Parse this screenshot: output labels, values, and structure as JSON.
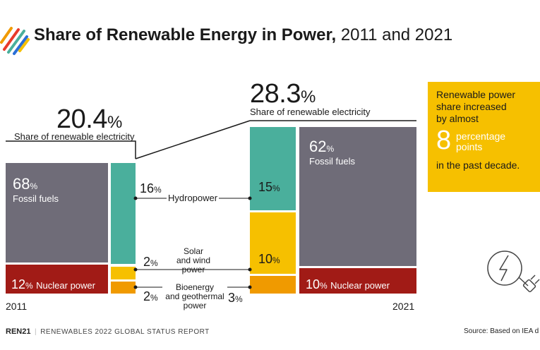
{
  "header": {
    "title_bold": "Share of Renewable Energy in Power,",
    "title_light": "2011 and 2021"
  },
  "colors": {
    "fossil": "#6f6c78",
    "nuclear": "#a11b16",
    "hydro": "#4aaf9c",
    "solar_wind": "#f6c000",
    "bio": "#f09a00",
    "box": "#f6c000"
  },
  "chart_data": {
    "type": "bar",
    "categories": [
      "2011",
      "2021"
    ],
    "series": [
      {
        "name": "Fossil fuels",
        "values": [
          68,
          62
        ]
      },
      {
        "name": "Nuclear power",
        "values": [
          12,
          10
        ]
      },
      {
        "name": "Hydropower",
        "values": [
          16,
          15
        ]
      },
      {
        "name": "Solar and wind power",
        "values": [
          2,
          10
        ]
      },
      {
        "name": "Bioenergy and geothermal power",
        "values": [
          2,
          3
        ]
      }
    ],
    "renewable_share": [
      20.4,
      28.3
    ],
    "renewable_share_label": "Share of renewable electricity"
  },
  "labels": {
    "share_2011_value": "20.4",
    "share_2021_value": "28.3",
    "pct_sign": "%",
    "year_2011": "2011",
    "year_2021": "2021",
    "fossil_2011": "68",
    "fossil_2021": "62",
    "fossil_name": "Fossil fuels",
    "nuclear_2011": "12",
    "nuclear_2021": "10",
    "nuclear_name": "Nuclear power",
    "hydro_2011": "16",
    "hydro_2021": "15",
    "hydro_name": "Hydropower",
    "solar_2011": "2",
    "solar_2021": "10",
    "solar_line1": "Solar",
    "solar_line2": "and wind",
    "solar_line3": "power",
    "bio_2011": "2",
    "bio_2021": "3",
    "bio_line1": "Bioenergy",
    "bio_line2": "and geothermal",
    "bio_line3": "power"
  },
  "callout": {
    "line1": "Renewable power",
    "line2": "share increased",
    "line3": "by almost",
    "number": "8",
    "unit_line1": "percentage",
    "unit_line2": "points",
    "line4": "in the past decade."
  },
  "footer": {
    "brand": "REN21",
    "report": "RENEWABLES 2022 GLOBAL STATUS REPORT",
    "source": "Source: Based on IEA d"
  }
}
